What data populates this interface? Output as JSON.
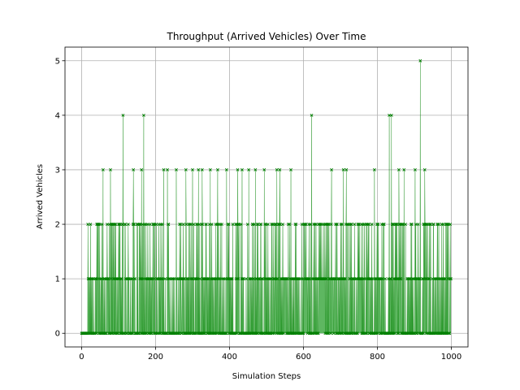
{
  "chart_data": {
    "type": "line",
    "title": "Throughput (Arrived Vehicles) Over Time",
    "xlabel": "Simulation Steps",
    "ylabel": "Arrived Vehicles",
    "xlim": [
      -45,
      1045
    ],
    "ylim": [
      -0.25,
      5.25
    ],
    "xticks": [
      0,
      200,
      400,
      600,
      800,
      1000
    ],
    "yticks": [
      0,
      1,
      2,
      3,
      4,
      5
    ],
    "grid": true,
    "series": [
      {
        "name": "",
        "color": "#008000",
        "fill_color": "#4caf50",
        "marker": "x",
        "x_start": 0,
        "x_end": 999,
        "baseline_zero_until": 17,
        "peaks": [
          {
            "x": 58,
            "y": 3
          },
          {
            "x": 78,
            "y": 3
          },
          {
            "x": 112,
            "y": 4
          },
          {
            "x": 140,
            "y": 3
          },
          {
            "x": 162,
            "y": 3
          },
          {
            "x": 168,
            "y": 4
          },
          {
            "x": 222,
            "y": 3
          },
          {
            "x": 232,
            "y": 3
          },
          {
            "x": 256,
            "y": 3
          },
          {
            "x": 282,
            "y": 3
          },
          {
            "x": 300,
            "y": 3
          },
          {
            "x": 316,
            "y": 3
          },
          {
            "x": 326,
            "y": 3
          },
          {
            "x": 348,
            "y": 3
          },
          {
            "x": 368,
            "y": 3
          },
          {
            "x": 392,
            "y": 3
          },
          {
            "x": 422,
            "y": 3
          },
          {
            "x": 434,
            "y": 3
          },
          {
            "x": 452,
            "y": 3
          },
          {
            "x": 470,
            "y": 3
          },
          {
            "x": 494,
            "y": 3
          },
          {
            "x": 528,
            "y": 3
          },
          {
            "x": 536,
            "y": 3
          },
          {
            "x": 566,
            "y": 3
          },
          {
            "x": 622,
            "y": 4
          },
          {
            "x": 676,
            "y": 3
          },
          {
            "x": 708,
            "y": 3
          },
          {
            "x": 716,
            "y": 3
          },
          {
            "x": 792,
            "y": 3
          },
          {
            "x": 832,
            "y": 4
          },
          {
            "x": 838,
            "y": 4
          },
          {
            "x": 858,
            "y": 3
          },
          {
            "x": 872,
            "y": 3
          },
          {
            "x": 902,
            "y": 3
          },
          {
            "x": 916,
            "y": 5
          },
          {
            "x": 928,
            "y": 3
          }
        ]
      }
    ]
  }
}
